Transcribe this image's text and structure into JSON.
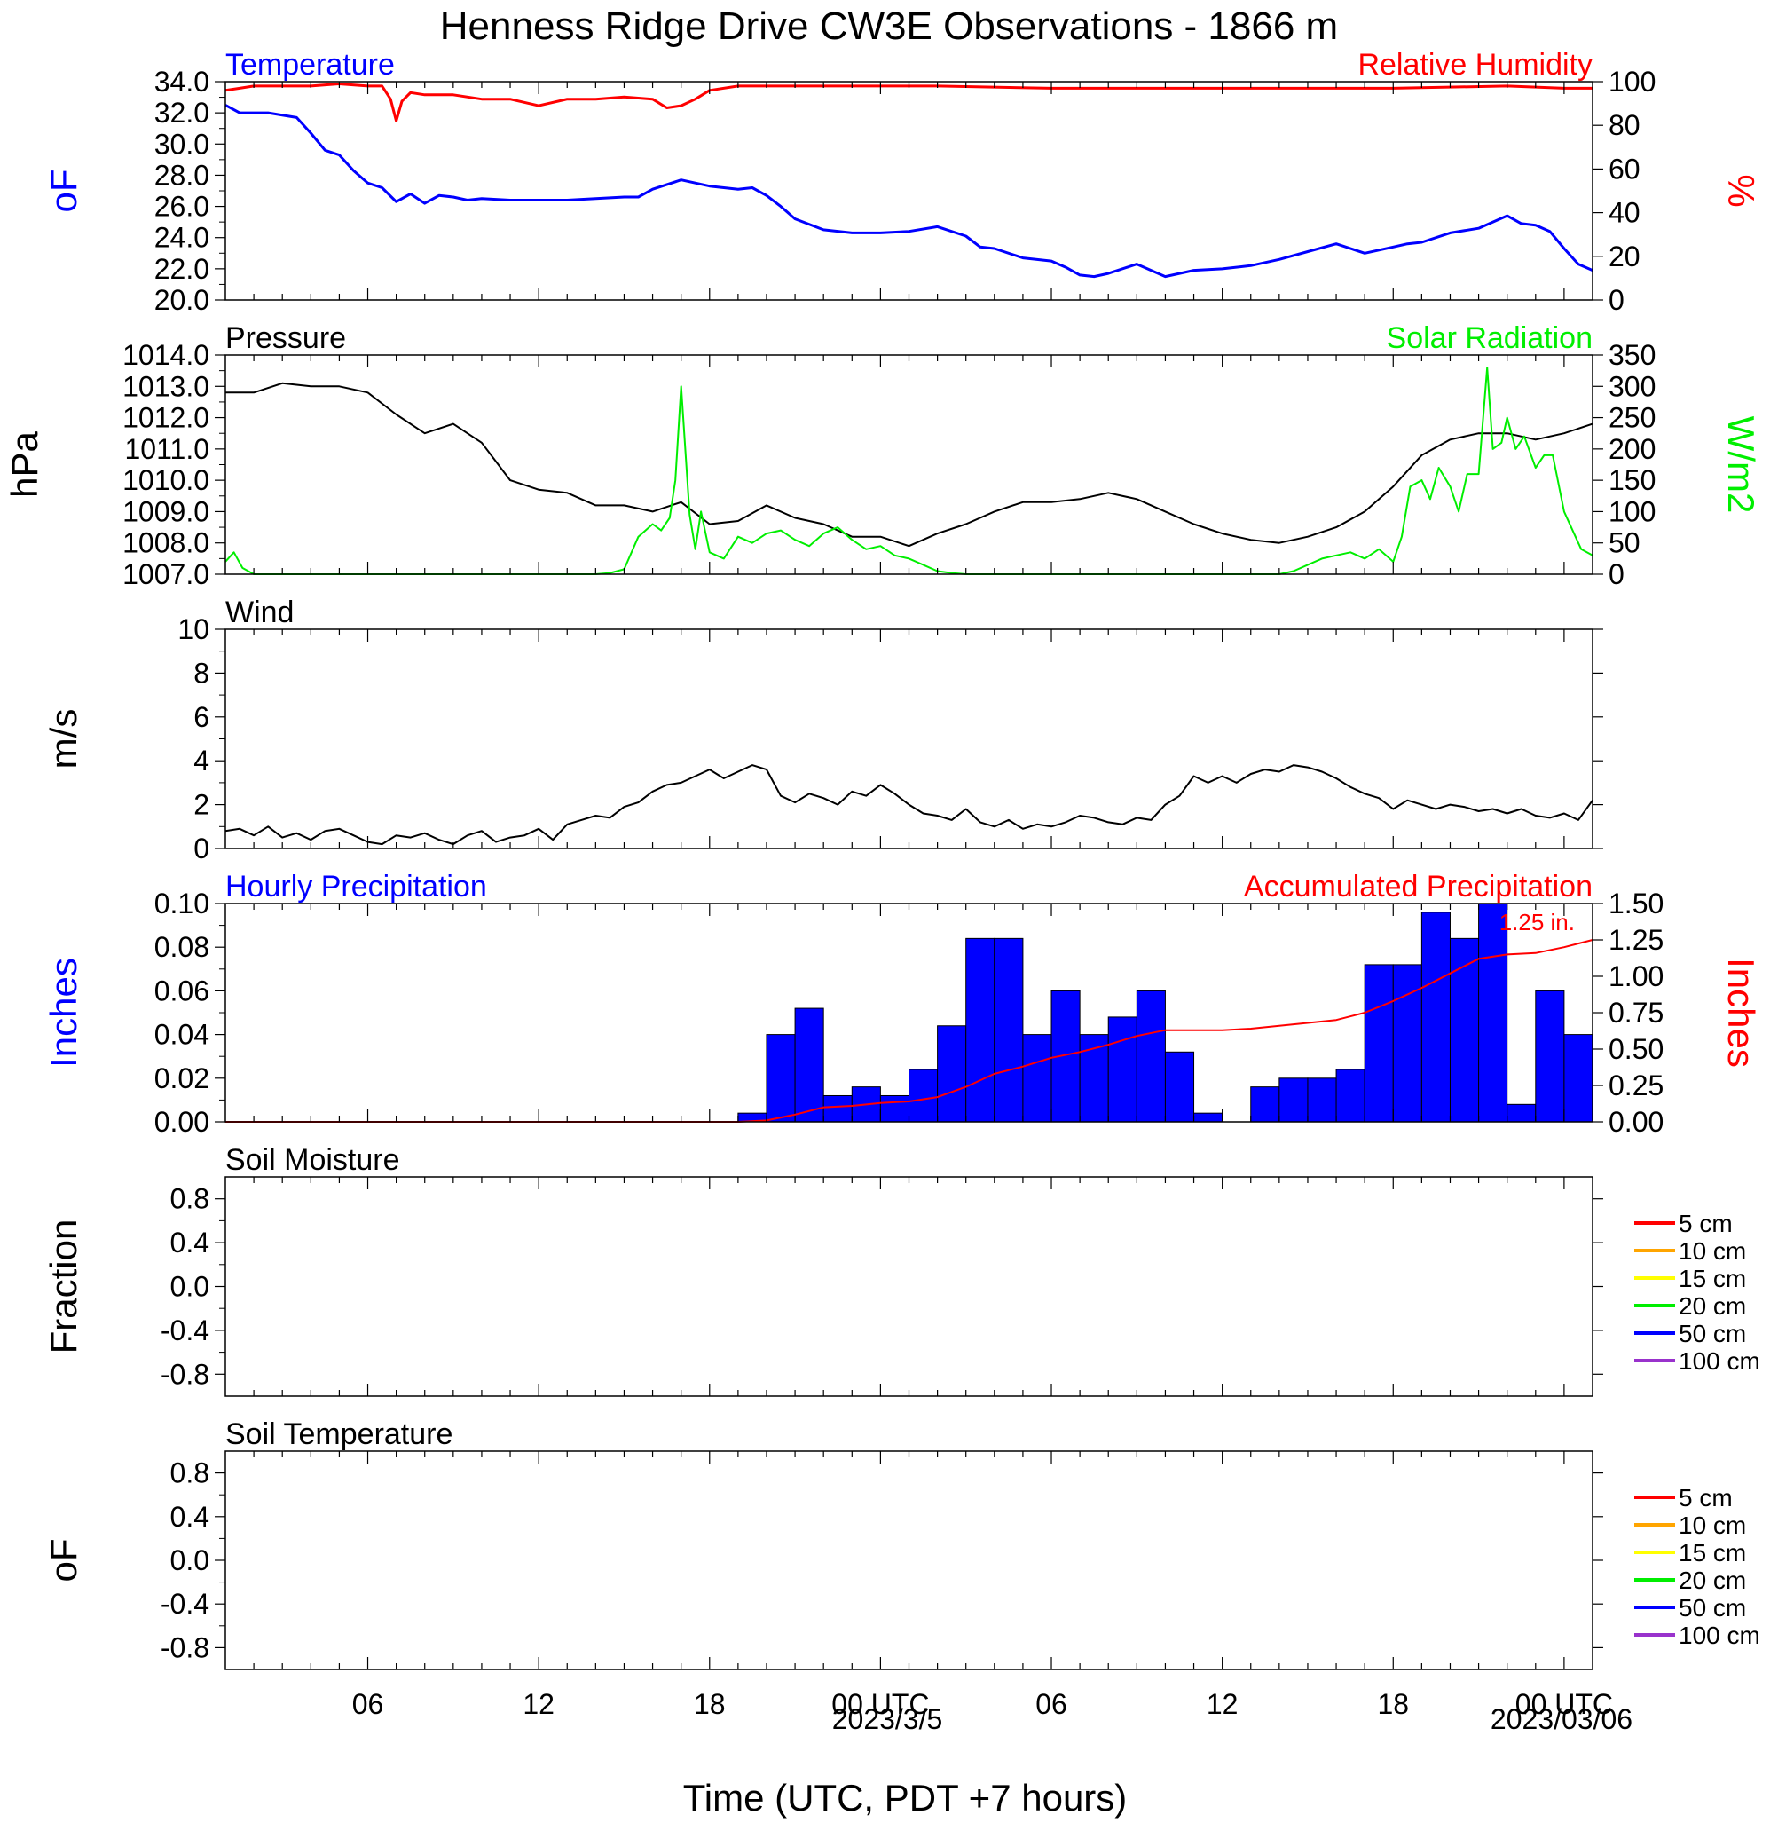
{
  "figure": {
    "title": "Henness Ridge Drive CW3E Observations - 1866 m",
    "xlabel": "Time (UTC, PDT +7 hours)",
    "x_ticks": [
      "06",
      "12",
      "18",
      "00 UTC",
      "06",
      "12",
      "18",
      "00 UTC"
    ],
    "x_ticks_hours": [
      6,
      12,
      18,
      24,
      30,
      36,
      42,
      48
    ],
    "x_dates": [
      "2023/3/5",
      "2023/03/06"
    ],
    "x_range_hours": [
      1,
      49
    ]
  },
  "chart_data": [
    {
      "type": "line",
      "title_left": "Temperature",
      "title_right": "Relative Humidity",
      "ylabel_left": "oF",
      "ylabel_right": "%",
      "ylim_left": [
        20,
        34
      ],
      "ylim_right": [
        0,
        100
      ],
      "yticks_left": [
        "20.0",
        "22.0",
        "24.0",
        "26.0",
        "28.0",
        "30.0",
        "32.0",
        "34.0"
      ],
      "yticks_right": [
        "0",
        "20",
        "40",
        "60",
        "80",
        "100"
      ],
      "series": [
        {
          "name": "Temperature",
          "color": "#0000ff",
          "axis": "left",
          "x": [
            1.0,
            1.5,
            2.5,
            3.5,
            4.0,
            4.5,
            5.0,
            5.5,
            6.0,
            6.5,
            7.0,
            7.5,
            8.0,
            8.5,
            9.0,
            9.5,
            10.0,
            11.0,
            12.0,
            13.0,
            14.0,
            15.0,
            15.5,
            16.0,
            17.0,
            18.0,
            19.0,
            19.5,
            20.0,
            20.5,
            21.0,
            22.0,
            23.0,
            24.0,
            25.0,
            26.0,
            27.0,
            27.5,
            28.0,
            29.0,
            30.0,
            30.5,
            31.0,
            31.5,
            32.0,
            33.0,
            34.0,
            35.0,
            36.0,
            37.0,
            38.0,
            39.0,
            40.0,
            41.0,
            42.0,
            42.5,
            43.0,
            44.0,
            45.0,
            46.0,
            46.5,
            47.0,
            47.5,
            48.0,
            48.5,
            49.0
          ],
          "y": [
            32.5,
            32.0,
            32.0,
            31.7,
            30.7,
            29.6,
            29.3,
            28.3,
            27.5,
            27.2,
            26.3,
            26.8,
            26.2,
            26.7,
            26.6,
            26.4,
            26.5,
            26.4,
            26.4,
            26.4,
            26.5,
            26.6,
            26.6,
            27.1,
            27.7,
            27.3,
            27.1,
            27.2,
            26.7,
            26.0,
            25.2,
            24.5,
            24.3,
            24.3,
            24.4,
            24.7,
            24.1,
            23.4,
            23.3,
            22.7,
            22.5,
            22.1,
            21.6,
            21.5,
            21.7,
            22.3,
            21.5,
            21.9,
            22.0,
            22.2,
            22.6,
            23.1,
            23.6,
            23.0,
            23.4,
            23.6,
            23.7,
            24.3,
            24.6,
            25.4,
            24.9,
            24.8,
            24.4,
            23.3,
            22.3,
            21.9
          ]
        },
        {
          "name": "Relative Humidity",
          "color": "#ff0000",
          "axis": "right",
          "x": [
            1.0,
            1.5,
            2.0,
            3.0,
            4.0,
            5.0,
            6.0,
            6.5,
            6.8,
            7.0,
            7.2,
            7.5,
            8.0,
            9.0,
            10.0,
            11.0,
            12.0,
            13.0,
            14.0,
            15.0,
            16.0,
            16.5,
            17.0,
            17.5,
            18.0,
            19.0,
            20.0,
            22.0,
            26.0,
            30.0,
            34.0,
            38.0,
            42.0,
            46.0,
            48.0,
            49.0
          ],
          "y": [
            96.0,
            97.0,
            98.0,
            98.0,
            98.0,
            99.0,
            98.0,
            98.0,
            92.0,
            82.0,
            91.0,
            95.0,
            94.0,
            94.0,
            92.0,
            92.0,
            89.0,
            92.0,
            92.0,
            93.0,
            92.0,
            88.0,
            89.0,
            92.0,
            96.0,
            98.0,
            98.0,
            98.0,
            98.0,
            97.0,
            97.0,
            97.0,
            97.0,
            98.0,
            97.0,
            97.0
          ]
        }
      ]
    },
    {
      "type": "line",
      "title_left": "Pressure",
      "title_right": "Solar Radiation",
      "ylabel_left": "hPa",
      "ylabel_right": "W/m2",
      "ylim_left": [
        1007,
        1014
      ],
      "ylim_right": [
        0,
        350
      ],
      "yticks_left": [
        "1007.0",
        "1008.0",
        "1009.0",
        "1010.0",
        "1011.0",
        "1012.0",
        "1013.0",
        "1014.0"
      ],
      "yticks_right": [
        "0",
        "50",
        "100",
        "150",
        "200",
        "250",
        "300",
        "350"
      ],
      "series": [
        {
          "name": "Pressure",
          "color": "#000000",
          "axis": "left",
          "x": [
            1.0,
            2.0,
            3.0,
            4.0,
            5.0,
            6.0,
            7.0,
            8.0,
            9.0,
            10.0,
            10.5,
            11.0,
            12.0,
            13.0,
            14.0,
            15.0,
            16.0,
            17.0,
            18.0,
            19.0,
            20.0,
            21.0,
            22.0,
            23.0,
            24.0,
            25.0,
            26.0,
            27.0,
            28.0,
            29.0,
            30.0,
            31.0,
            32.0,
            33.0,
            34.0,
            35.0,
            36.0,
            37.0,
            38.0,
            39.0,
            40.0,
            41.0,
            42.0,
            43.0,
            44.0,
            45.0,
            46.0,
            47.0,
            48.0,
            49.0
          ],
          "y": [
            1012.8,
            1012.8,
            1013.1,
            1013.0,
            1013.0,
            1012.8,
            1012.1,
            1011.5,
            1011.8,
            1011.2,
            1010.6,
            1010.0,
            1009.7,
            1009.6,
            1009.2,
            1009.2,
            1009.0,
            1009.3,
            1008.6,
            1008.7,
            1009.2,
            1008.8,
            1008.6,
            1008.2,
            1008.2,
            1007.9,
            1008.3,
            1008.6,
            1009.0,
            1009.3,
            1009.3,
            1009.4,
            1009.6,
            1009.4,
            1009.0,
            1008.6,
            1008.3,
            1008.1,
            1008.0,
            1008.2,
            1008.5,
            1009.0,
            1009.8,
            1010.8,
            1011.3,
            1011.5,
            1011.5,
            1011.3,
            1011.5,
            1011.8
          ]
        },
        {
          "name": "Solar Radiation",
          "color": "#00ee00",
          "axis": "right",
          "x": [
            1.0,
            1.3,
            1.6,
            2.0,
            14.0,
            14.5,
            15.0,
            15.5,
            16.0,
            16.3,
            16.6,
            16.8,
            17.0,
            17.3,
            17.5,
            17.7,
            18.0,
            18.5,
            19.0,
            19.5,
            20.0,
            20.5,
            21.0,
            21.5,
            22.0,
            22.5,
            23.0,
            23.5,
            24.0,
            24.5,
            25.0,
            25.5,
            26.0,
            26.5,
            27.0,
            38.0,
            38.5,
            39.0,
            39.5,
            40.0,
            40.5,
            41.0,
            41.5,
            42.0,
            42.3,
            42.6,
            43.0,
            43.3,
            43.6,
            44.0,
            44.3,
            44.6,
            45.0,
            45.3,
            45.5,
            45.8,
            46.0,
            46.3,
            46.6,
            47.0,
            47.3,
            47.6,
            48.0,
            48.3,
            48.6,
            49.0
          ],
          "y": [
            20.0,
            35.0,
            10.0,
            0.0,
            0.0,
            2.0,
            8.0,
            60.0,
            80.0,
            70.0,
            90.0,
            150.0,
            300.0,
            95.0,
            40.0,
            100.0,
            35.0,
            25.0,
            60.0,
            50.0,
            65.0,
            70.0,
            55.0,
            45.0,
            65.0,
            75.0,
            55.0,
            40.0,
            45.0,
            30.0,
            25.0,
            15.0,
            5.0,
            2.0,
            0.0,
            0.0,
            5.0,
            15.0,
            25.0,
            30.0,
            35.0,
            25.0,
            40.0,
            20.0,
            60.0,
            140.0,
            150.0,
            120.0,
            170.0,
            140.0,
            100.0,
            160.0,
            160.0,
            330.0,
            200.0,
            210.0,
            250.0,
            200.0,
            220.0,
            170.0,
            190.0,
            190.0,
            100.0,
            70.0,
            40.0,
            30.0
          ]
        }
      ]
    },
    {
      "type": "line",
      "title_left": "Wind",
      "ylabel_left": "m/s",
      "ylim_left": [
        0,
        10
      ],
      "yticks_left": [
        "0",
        "2",
        "4",
        "6",
        "8",
        "10"
      ],
      "series": [
        {
          "name": "Wind Speed",
          "color": "#000000",
          "axis": "left",
          "x": [
            1.0,
            1.5,
            2.0,
            2.5,
            3.0,
            3.5,
            4.0,
            4.5,
            5.0,
            5.5,
            6.0,
            6.5,
            7.0,
            7.5,
            8.0,
            8.5,
            9.0,
            9.5,
            10.0,
            10.5,
            11.0,
            11.5,
            12.0,
            12.5,
            13.0,
            13.5,
            14.0,
            14.5,
            15.0,
            15.5,
            16.0,
            16.5,
            17.0,
            17.5,
            18.0,
            18.5,
            19.0,
            19.5,
            20.0,
            20.5,
            21.0,
            21.5,
            22.0,
            22.5,
            23.0,
            23.5,
            24.0,
            24.5,
            25.0,
            25.5,
            26.0,
            26.5,
            27.0,
            27.5,
            28.0,
            28.5,
            29.0,
            29.5,
            30.0,
            30.5,
            31.0,
            31.5,
            32.0,
            32.5,
            33.0,
            33.5,
            34.0,
            34.5,
            35.0,
            35.5,
            36.0,
            36.5,
            37.0,
            37.5,
            38.0,
            38.5,
            39.0,
            39.5,
            40.0,
            40.5,
            41.0,
            41.5,
            42.0,
            42.5,
            43.0,
            43.5,
            44.0,
            44.5,
            45.0,
            45.5,
            46.0,
            46.5,
            47.0,
            47.5,
            48.0,
            48.5,
            49.0
          ],
          "y": [
            0.8,
            0.9,
            0.6,
            1.0,
            0.5,
            0.7,
            0.4,
            0.8,
            0.9,
            0.6,
            0.3,
            0.2,
            0.6,
            0.5,
            0.7,
            0.4,
            0.2,
            0.6,
            0.8,
            0.3,
            0.5,
            0.6,
            0.9,
            0.4,
            1.1,
            1.3,
            1.5,
            1.4,
            1.9,
            2.1,
            2.6,
            2.9,
            3.0,
            3.3,
            3.6,
            3.2,
            3.5,
            3.8,
            3.6,
            2.4,
            2.1,
            2.5,
            2.3,
            2.0,
            2.6,
            2.4,
            2.9,
            2.5,
            2.0,
            1.6,
            1.5,
            1.3,
            1.8,
            1.2,
            1.0,
            1.3,
            0.9,
            1.1,
            1.0,
            1.2,
            1.5,
            1.4,
            1.2,
            1.1,
            1.4,
            1.3,
            2.0,
            2.4,
            3.3,
            3.0,
            3.3,
            3.0,
            3.4,
            3.6,
            3.5,
            3.8,
            3.7,
            3.5,
            3.2,
            2.8,
            2.5,
            2.3,
            1.8,
            2.2,
            2.0,
            1.8,
            2.0,
            1.9,
            1.7,
            1.8,
            1.6,
            1.8,
            1.5,
            1.4,
            1.6,
            1.3,
            2.2
          ]
        }
      ]
    },
    {
      "type": "bar",
      "title_left": "Hourly Precipitation",
      "title_right": "Accumulated Precipitation",
      "ylabel_left": "Inches",
      "ylabel_right": "Inches",
      "ylim_left": [
        0,
        0.1
      ],
      "ylim_right": [
        0,
        1.5
      ],
      "yticks_left": [
        "0.00",
        "0.02",
        "0.04",
        "0.06",
        "0.08",
        "0.10"
      ],
      "yticks_right": [
        "0.00",
        "0.25",
        "0.50",
        "0.75",
        "1.00",
        "1.25",
        "1.50"
      ],
      "annotation": "1.25 in.",
      "bar_color": "#0000ff",
      "bar_hours": [
        19,
        20,
        21,
        22,
        23,
        24,
        25,
        26,
        27,
        28,
        29,
        30,
        31,
        32,
        33,
        34,
        35,
        36,
        37,
        38,
        39,
        40,
        41,
        42,
        43,
        44,
        45,
        46,
        47,
        48
      ],
      "bar_values": [
        0.004,
        0.04,
        0.052,
        0.012,
        0.016,
        0.012,
        0.024,
        0.044,
        0.084,
        0.084,
        0.04,
        0.06,
        0.04,
        0.048,
        0.06,
        0.032,
        0.004,
        0.0,
        0.016,
        0.02,
        0.02,
        0.024,
        0.072,
        0.072,
        0.096,
        0.084,
        0.1,
        0.008,
        0.06,
        0.04
      ],
      "series": [
        {
          "name": "Accumulated Precipitation",
          "color": "#ff0000",
          "axis": "right",
          "x": [
            1.0,
            19.0,
            20.0,
            21.0,
            22.0,
            23.0,
            24.0,
            25.0,
            26.0,
            27.0,
            28.0,
            29.0,
            30.0,
            31.0,
            32.0,
            33.0,
            34.0,
            35.0,
            36.0,
            37.0,
            38.0,
            39.0,
            40.0,
            41.0,
            42.0,
            43.0,
            44.0,
            45.0,
            46.0,
            47.0,
            48.0,
            49.0
          ],
          "y": [
            0.0,
            0.0,
            0.01,
            0.05,
            0.1,
            0.11,
            0.13,
            0.14,
            0.17,
            0.24,
            0.33,
            0.38,
            0.44,
            0.48,
            0.53,
            0.59,
            0.63,
            0.63,
            0.63,
            0.64,
            0.66,
            0.68,
            0.7,
            0.75,
            0.83,
            0.92,
            1.02,
            1.12,
            1.15,
            1.16,
            1.2,
            1.25
          ]
        }
      ]
    },
    {
      "type": "line",
      "title_left": "Soil Moisture",
      "ylabel_left": "Fraction",
      "ylim_left": [
        -1,
        1
      ],
      "yticks_left": [
        "-0.8",
        "-0.4",
        "0.0",
        "0.4",
        "0.8"
      ],
      "legend": [
        {
          "label": "5 cm",
          "color": "#ff0000"
        },
        {
          "label": "10 cm",
          "color": "#ffa500"
        },
        {
          "label": "15 cm",
          "color": "#ffff00"
        },
        {
          "label": "20 cm",
          "color": "#00ee00"
        },
        {
          "label": "50 cm",
          "color": "#0000ff"
        },
        {
          "label": "100 cm",
          "color": "#9932cc"
        }
      ],
      "series": []
    },
    {
      "type": "line",
      "title_left": "Soil Temperature",
      "ylabel_left": "oF",
      "ylim_left": [
        -1,
        1
      ],
      "yticks_left": [
        "-0.8",
        "-0.4",
        "0.0",
        "0.4",
        "0.8"
      ],
      "legend": [
        {
          "label": "5 cm",
          "color": "#ff0000"
        },
        {
          "label": "10 cm",
          "color": "#ffa500"
        },
        {
          "label": "15 cm",
          "color": "#ffff00"
        },
        {
          "label": "20 cm",
          "color": "#00ee00"
        },
        {
          "label": "50 cm",
          "color": "#0000ff"
        },
        {
          "label": "100 cm",
          "color": "#9932cc"
        }
      ],
      "series": []
    }
  ]
}
